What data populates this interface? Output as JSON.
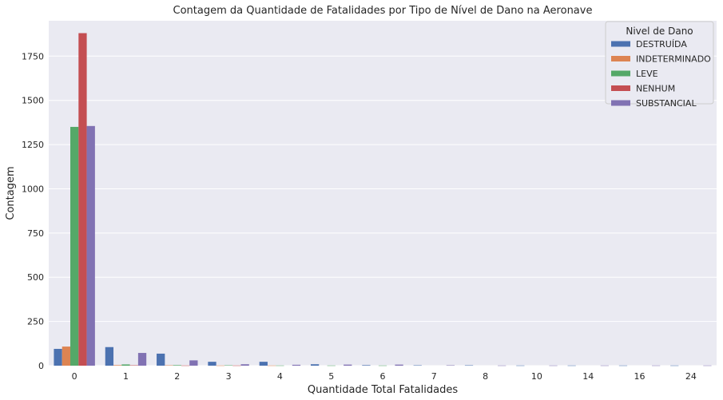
{
  "chart_data": {
    "type": "bar",
    "title": "Contagem da Quantidade de Fatalidades por Tipo de Nível de Dano na Aeronave",
    "xlabel": "Quantidade Total Fatalidades",
    "ylabel": "Contagem",
    "ylim": [
      0,
      1950
    ],
    "yticks": [
      0,
      250,
      500,
      750,
      1000,
      1250,
      1500,
      1750
    ],
    "grid": true,
    "legend_title": "Nivel de Dano",
    "legend_position": "top-right",
    "categories": [
      "0",
      "1",
      "2",
      "3",
      "4",
      "5",
      "6",
      "7",
      "8",
      "10",
      "14",
      "16",
      "24"
    ],
    "series": [
      {
        "name": "DESTRUÍDA",
        "color": "#4c72b0",
        "values": [
          95,
          105,
          68,
          22,
          22,
          8,
          3,
          2,
          2,
          1,
          1,
          1,
          1
        ]
      },
      {
        "name": "INDETERMINADO",
        "color": "#dd8452",
        "values": [
          108,
          3,
          2,
          1,
          1,
          0,
          0,
          0,
          0,
          0,
          0,
          0,
          0
        ]
      },
      {
        "name": "LEVE",
        "color": "#55a868",
        "values": [
          1350,
          7,
          3,
          2,
          1,
          1,
          1,
          0,
          0,
          0,
          0,
          0,
          0
        ]
      },
      {
        "name": "NENHUM",
        "color": "#c44e52",
        "values": [
          1880,
          2,
          1,
          1,
          0,
          0,
          0,
          0,
          0,
          0,
          0,
          0,
          0
        ]
      },
      {
        "name": "SUBSTANCIAL",
        "color": "#8172b3",
        "values": [
          1355,
          72,
          30,
          8,
          5,
          6,
          6,
          2,
          1,
          1,
          1,
          1,
          1
        ]
      }
    ]
  }
}
